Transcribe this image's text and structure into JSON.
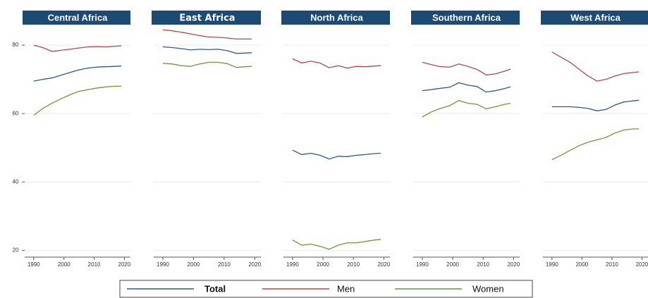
{
  "chart_data": [
    {
      "type": "line",
      "title": "Central Africa",
      "x": [
        1990,
        1993,
        1996,
        1999,
        2002,
        2005,
        2008,
        2011,
        2014,
        2017,
        2019
      ],
      "xlim": [
        1987,
        2022
      ],
      "xticks": [
        1990,
        2000,
        2010,
        2020
      ],
      "ylim": [
        18,
        86
      ],
      "yticks": [
        20,
        40,
        60,
        80
      ],
      "grid": true,
      "series": [
        {
          "name": "Total",
          "color": "#2e5a87",
          "values": [
            69.5,
            70,
            70.4,
            71.2,
            72,
            72.8,
            73.3,
            73.6,
            73.7,
            73.8,
            73.9
          ]
        },
        {
          "name": "Men",
          "color": "#b5464b",
          "values": [
            80,
            79.3,
            78.2,
            78.5,
            78.8,
            79.2,
            79.5,
            79.6,
            79.5,
            79.7,
            79.8
          ]
        },
        {
          "name": "Women",
          "color": "#6a9a3a",
          "values": [
            59.5,
            61.5,
            63,
            64.3,
            65.5,
            66.5,
            67,
            67.5,
            67.8,
            68,
            68
          ]
        }
      ]
    },
    {
      "type": "line",
      "title": "East Africa",
      "x": [
        1990,
        1993,
        1996,
        1999,
        2002,
        2005,
        2008,
        2011,
        2014,
        2017,
        2019
      ],
      "xlim": [
        1987,
        2022
      ],
      "xticks": [
        1990,
        2000,
        2010,
        2020
      ],
      "ylim": [
        18,
        86
      ],
      "yticks": [
        20,
        40,
        60,
        80
      ],
      "grid": true,
      "series": [
        {
          "color": "#2e5a87",
          "values": [
            79.5,
            79.3,
            79,
            78.6,
            78.8,
            78.7,
            78.8,
            78.4,
            77.6,
            77.7,
            77.8
          ]
        },
        {
          "color": "#b5464b",
          "values": [
            84.5,
            84.2,
            83.8,
            83.3,
            82.8,
            82.4,
            82.3,
            82.1,
            81.8,
            81.8,
            81.8
          ]
        },
        {
          "color": "#6a9a3a",
          "values": [
            74.7,
            74.5,
            74,
            73.8,
            74.5,
            75,
            75,
            74.6,
            73.5,
            73.7,
            73.8
          ]
        }
      ]
    },
    {
      "type": "line",
      "title": "North Africa",
      "x": [
        1990,
        1993,
        1996,
        1999,
        2002,
        2005,
        2008,
        2011,
        2014,
        2017,
        2019
      ],
      "xlim": [
        1987,
        2022
      ],
      "xticks": [
        1990,
        2000,
        2010,
        2020
      ],
      "ylim": [
        18,
        86
      ],
      "yticks": [
        20,
        40,
        60,
        80
      ],
      "grid": true,
      "series": [
        {
          "color": "#2e5a87",
          "values": [
            49.3,
            48,
            48.4,
            47.8,
            46.7,
            47.5,
            47.4,
            47.8,
            48,
            48.3,
            48.4
          ]
        },
        {
          "color": "#b5464b",
          "values": [
            76,
            74.8,
            75.3,
            74.8,
            73.4,
            74,
            73.3,
            73.8,
            73.7,
            73.9,
            74
          ]
        },
        {
          "color": "#6a9a3a",
          "values": [
            23,
            21.5,
            21.8,
            21.2,
            20.3,
            21.5,
            22.2,
            22.2,
            22.6,
            23,
            23.2
          ]
        }
      ]
    },
    {
      "type": "line",
      "title": "Southern Africa",
      "x": [
        1990,
        1993,
        1996,
        1999,
        2002,
        2005,
        2008,
        2011,
        2014,
        2017,
        2019
      ],
      "xlim": [
        1987,
        2022
      ],
      "xticks": [
        1990,
        2000,
        2010,
        2020
      ],
      "ylim": [
        18,
        86
      ],
      "yticks": [
        20,
        40,
        60,
        80
      ],
      "grid": true,
      "series": [
        {
          "color": "#2e5a87",
          "values": [
            66.7,
            67,
            67.4,
            67.7,
            69,
            68.3,
            67.9,
            66.3,
            66.7,
            67.3,
            67.8
          ]
        },
        {
          "color": "#b5464b",
          "values": [
            75,
            74.3,
            73.7,
            73.6,
            74.5,
            73.8,
            72.9,
            71.3,
            71.6,
            72.4,
            73
          ]
        },
        {
          "color": "#6a9a3a",
          "values": [
            59,
            60.5,
            61.5,
            62.3,
            63.8,
            63,
            62.7,
            61.4,
            62,
            62.7,
            63
          ]
        }
      ]
    },
    {
      "type": "line",
      "title": "West Africa",
      "x": [
        1990,
        1993,
        1996,
        1999,
        2002,
        2005,
        2008,
        2011,
        2014,
        2017,
        2019
      ],
      "xlim": [
        1987,
        2022
      ],
      "xticks": [
        1990,
        2000,
        2010,
        2020
      ],
      "ylim": [
        18,
        86
      ],
      "yticks": [
        20,
        40,
        60,
        80
      ],
      "grid": true,
      "series": [
        {
          "color": "#2e5a87",
          "values": [
            62,
            62,
            62,
            61.8,
            61.5,
            60.8,
            61.2,
            62.5,
            63.4,
            63.7,
            63.9
          ]
        },
        {
          "color": "#b5464b",
          "values": [
            78,
            76.5,
            75,
            73,
            71,
            69.5,
            70,
            71,
            71.7,
            72,
            72.2
          ]
        },
        {
          "color": "#6a9a3a",
          "values": [
            46.5,
            47.8,
            49.2,
            50.6,
            51.6,
            52.3,
            53,
            54.3,
            55.2,
            55.5,
            55.5
          ]
        }
      ]
    }
  ]
}
